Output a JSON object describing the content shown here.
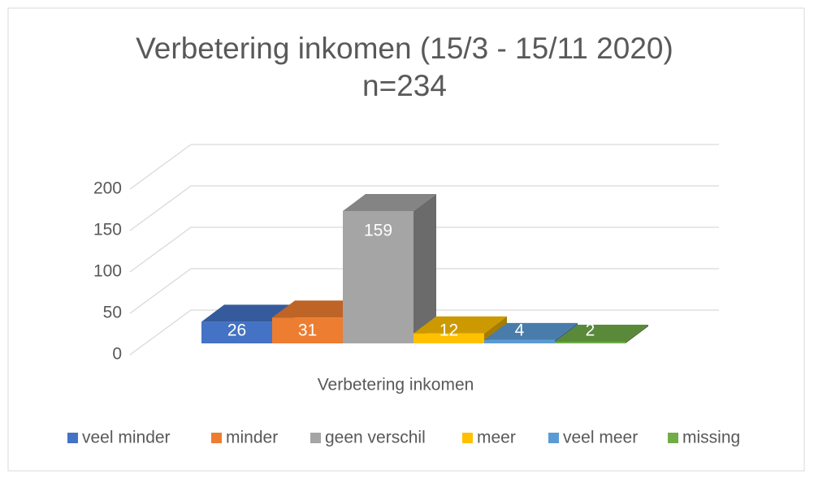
{
  "chart_data": {
    "type": "bar3d",
    "title": "Verbetering inkomen (15/3 - 15/11 2020)",
    "subtitle": "n=234",
    "categories": [
      "Verbetering inkomen"
    ],
    "series": [
      {
        "name": "veel minder",
        "color": "#4472c4",
        "values": [
          26
        ]
      },
      {
        "name": "minder",
        "color": "#ed7d31",
        "values": [
          31
        ]
      },
      {
        "name": "geen verschil",
        "color": "#a5a5a5",
        "values": [
          159
        ]
      },
      {
        "name": "meer",
        "color": "#ffc000",
        "values": [
          12
        ]
      },
      {
        "name": "veel meer",
        "color": "#5b9bd5",
        "values": [
          4
        ]
      },
      {
        "name": "missing",
        "color": "#70ad47",
        "values": [
          2
        ]
      }
    ],
    "ylim": [
      0,
      200
    ],
    "yticks": [
      0,
      50,
      100,
      150,
      200
    ],
    "grid": true,
    "legend": "bottom"
  }
}
